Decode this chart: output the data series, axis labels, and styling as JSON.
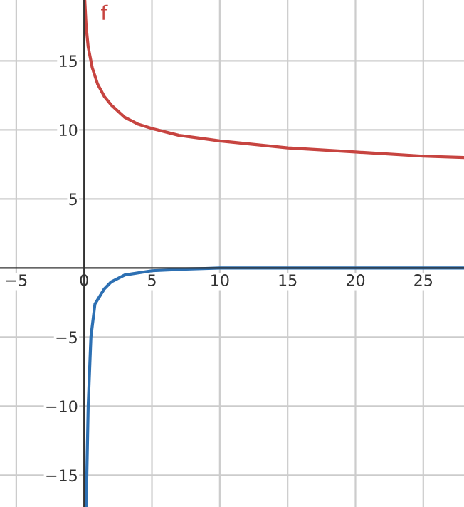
{
  "chart_data": {
    "type": "line",
    "xlim": [
      -6.2,
      28
    ],
    "ylim": [
      -17.3,
      19.4
    ],
    "xticks": [
      {
        "value": -5,
        "label": "−5"
      },
      0,
      5,
      10,
      15,
      20,
      25
    ],
    "yticks": [
      {
        "value": -15,
        "label": "−15"
      },
      {
        "value": -10,
        "label": "−10"
      },
      {
        "value": -5,
        "label": "−5"
      },
      5,
      10,
      15
    ],
    "grid": true,
    "legend": false,
    "marker": "none",
    "line_style": "solid",
    "series": [
      {
        "name": "f",
        "color": "#c74440",
        "x": [
          0.05,
          0.15,
          0.3,
          0.6,
          1,
          1.5,
          2,
          3,
          4,
          5,
          7,
          10,
          15,
          20,
          25,
          28
        ],
        "values": [
          19.4,
          17.5,
          16,
          14.5,
          13.3,
          12.4,
          11.8,
          10.9,
          10.4,
          10.1,
          9.6,
          9.2,
          8.7,
          8.4,
          8.1,
          8.0
        ]
      },
      {
        "color": "#2d70b3",
        "x": [
          0.15,
          0.2,
          0.3,
          0.5,
          0.8,
          1.5,
          2,
          3,
          5,
          7,
          10,
          15,
          20,
          28
        ],
        "values": [
          -17.3,
          -15,
          -10,
          -5,
          -2.6,
          -1.5,
          -1.0,
          -0.5,
          -0.2,
          -0.1,
          0,
          0,
          0,
          0
        ]
      }
    ]
  }
}
